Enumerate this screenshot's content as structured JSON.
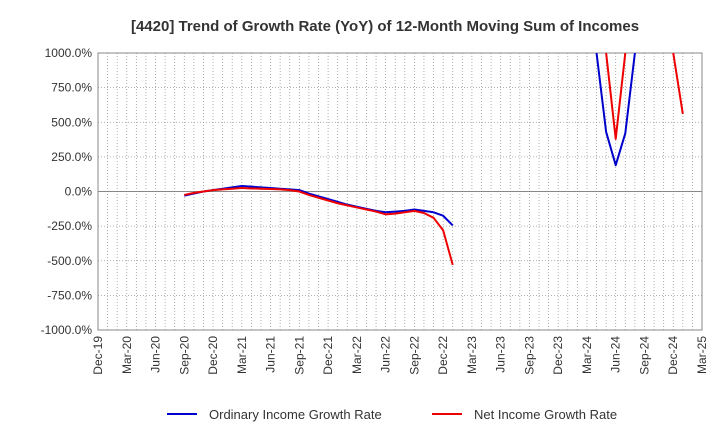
{
  "chart_data": {
    "type": "line",
    "title": "[4420]  Trend of Growth Rate (YoY) of 12-Month Moving Sum of Incomes",
    "xlabel": "",
    "ylabel": "",
    "ylim": [
      -1000,
      1000
    ],
    "yticks": [
      1000,
      750,
      500,
      250,
      0,
      -250,
      -500,
      -750,
      -1000
    ],
    "ytick_labels": [
      "1000.0%",
      "750.0%",
      "500.0%",
      "250.0%",
      "0.0%",
      "-250.0%",
      "-500.0%",
      "-750.0%",
      "-1000.0%"
    ],
    "x_range": [
      "2019-12",
      "2025-03"
    ],
    "xtick_labels": [
      "Dec-19",
      "Mar-20",
      "Jun-20",
      "Sep-20",
      "Dec-20",
      "Mar-21",
      "Jun-21",
      "Sep-21",
      "Dec-21",
      "Mar-22",
      "Jun-22",
      "Sep-22",
      "Dec-22",
      "Mar-23",
      "Jun-23",
      "Sep-23",
      "Dec-23",
      "Mar-24",
      "Jun-24",
      "Sep-24",
      "Dec-24",
      "Mar-25"
    ],
    "grid": true,
    "legend_position": "bottom",
    "series": [
      {
        "name": "Ordinary Income Growth Rate",
        "color": "#0000cc",
        "segments": [
          [
            [
              "2020-09",
              -30
            ],
            [
              "2020-10",
              -15
            ],
            [
              "2020-11",
              0
            ],
            [
              "2020-12",
              10
            ],
            [
              "2021-01",
              20
            ],
            [
              "2021-02",
              30
            ],
            [
              "2021-03",
              40
            ],
            [
              "2021-04",
              35
            ],
            [
              "2021-05",
              30
            ],
            [
              "2021-06",
              25
            ],
            [
              "2021-07",
              20
            ],
            [
              "2021-08",
              15
            ],
            [
              "2021-09",
              10
            ],
            [
              "2021-10",
              -15
            ],
            [
              "2021-11",
              -35
            ],
            [
              "2021-12",
              -55
            ],
            [
              "2022-01",
              -75
            ],
            [
              "2022-02",
              -95
            ],
            [
              "2022-03",
              -110
            ],
            [
              "2022-04",
              -125
            ],
            [
              "2022-05",
              -140
            ],
            [
              "2022-06",
              -150
            ],
            [
              "2022-07",
              -145
            ],
            [
              "2022-08",
              -140
            ],
            [
              "2022-09",
              -130
            ],
            [
              "2022-10",
              -140
            ],
            [
              "2022-11",
              -150
            ],
            [
              "2022-12",
              -175
            ],
            [
              "2023-01",
              -245
            ]
          ],
          [
            [
              "2024-04",
              1000
            ],
            [
              "2024-05",
              430
            ],
            [
              "2024-06",
              190
            ],
            [
              "2024-07",
              420
            ],
            [
              "2024-08",
              1000
            ]
          ]
        ]
      },
      {
        "name": "Net Income Growth Rate",
        "color": "#ee0000",
        "segments": [
          [
            [
              "2020-09",
              -25
            ],
            [
              "2020-10",
              -10
            ],
            [
              "2020-11",
              0
            ],
            [
              "2020-12",
              10
            ],
            [
              "2021-01",
              15
            ],
            [
              "2021-02",
              20
            ],
            [
              "2021-03",
              25
            ],
            [
              "2021-04",
              22
            ],
            [
              "2021-05",
              20
            ],
            [
              "2021-06",
              18
            ],
            [
              "2021-07",
              15
            ],
            [
              "2021-08",
              10
            ],
            [
              "2021-09",
              0
            ],
            [
              "2021-10",
              -25
            ],
            [
              "2021-11",
              -45
            ],
            [
              "2021-12",
              -65
            ],
            [
              "2022-01",
              -85
            ],
            [
              "2022-02",
              -100
            ],
            [
              "2022-03",
              -115
            ],
            [
              "2022-04",
              -130
            ],
            [
              "2022-05",
              -145
            ],
            [
              "2022-06",
              -165
            ],
            [
              "2022-07",
              -160
            ],
            [
              "2022-08",
              -150
            ],
            [
              "2022-09",
              -140
            ],
            [
              "2022-10",
              -155
            ],
            [
              "2022-11",
              -190
            ],
            [
              "2022-12",
              -280
            ],
            [
              "2023-01",
              -530
            ]
          ],
          [
            [
              "2024-05",
              1000
            ],
            [
              "2024-06",
              380
            ],
            [
              "2024-07",
              1000
            ]
          ],
          [
            [
              "2024-12",
              1000
            ],
            [
              "2025-01",
              560
            ]
          ]
        ]
      }
    ]
  }
}
